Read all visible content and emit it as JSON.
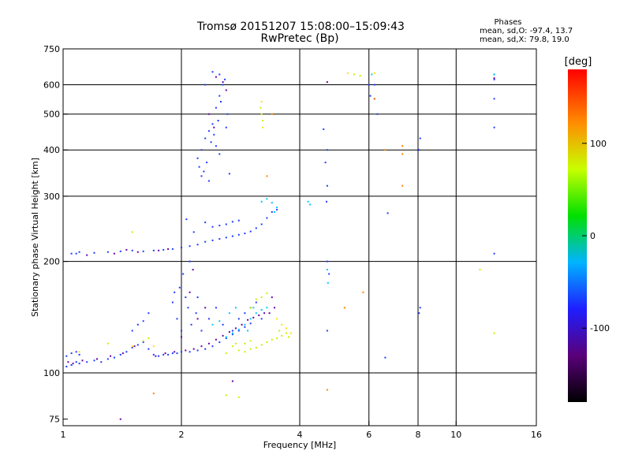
{
  "header": {
    "title": "Tromsø 20151207 15:08:00–15:09:43",
    "subtitle": "RwPretec (Bp)"
  },
  "stats": {
    "title": "Phases",
    "o_line": "mean, sd,O: -97.4, 13.7",
    "x_line": "mean, sd,X:  79.8, 19.0"
  },
  "colors": {
    "purple": "#6a00a8",
    "blue": "#1f3cff",
    "cyan": "#00c8ff",
    "yellowgreen": "#c8f000",
    "yellow": "#ffe000",
    "orange": "#ff8000"
  },
  "chart_data": {
    "type": "scatter",
    "title": "Tromsø 20151207 15:08:00–15:09:43",
    "subtitle": "RwPretec (Bp)",
    "xlabel": "Frequency [MHz]",
    "ylabel": "Stationary phase Virtual Height [km]",
    "x_scale": "log2",
    "y_scale": "log",
    "xlim": [
      1,
      16
    ],
    "ylim": [
      72,
      750
    ],
    "x_ticks": [
      1,
      2,
      4,
      6,
      8,
      10,
      16
    ],
    "y_ticks": [
      75,
      100,
      200,
      300,
      400,
      500,
      600,
      750
    ],
    "x_grid": [
      2,
      4,
      6,
      8,
      10
    ],
    "y_grid": [
      100,
      200,
      300,
      400,
      500,
      600
    ],
    "grid": true,
    "colorbar": {
      "label": "[deg]",
      "range": [
        -180,
        180
      ],
      "ticks": [
        100,
        0,
        -100
      ],
      "placement": "right"
    },
    "series": [
      {
        "color": "blue",
        "points": [
          [
            1.02,
            104
          ],
          [
            1.05,
            105
          ],
          [
            1.08,
            107
          ],
          [
            1.1,
            106
          ],
          [
            1.15,
            107
          ],
          [
            1.2,
            108
          ],
          [
            1.25,
            107
          ],
          [
            1.3,
            109
          ],
          [
            1.35,
            110
          ],
          [
            1.4,
            112
          ],
          [
            1.45,
            114
          ],
          [
            1.5,
            117
          ],
          [
            1.55,
            119
          ],
          [
            1.6,
            121
          ],
          [
            1.65,
            116
          ],
          [
            1.7,
            112
          ],
          [
            1.75,
            111
          ],
          [
            1.8,
            112
          ],
          [
            1.85,
            112
          ],
          [
            1.9,
            113
          ],
          [
            1.95,
            113
          ],
          [
            2.0,
            114
          ],
          [
            2.1,
            114
          ],
          [
            2.2,
            115
          ],
          [
            2.3,
            116
          ],
          [
            2.4,
            118
          ],
          [
            2.5,
            121
          ],
          [
            2.6,
            124
          ],
          [
            2.7,
            127
          ],
          [
            2.8,
            130
          ],
          [
            2.9,
            133
          ],
          [
            3.0,
            136
          ],
          [
            1.02,
            111
          ],
          [
            1.05,
            113
          ],
          [
            1.08,
            114
          ],
          [
            1.1,
            112
          ],
          [
            1.05,
            210
          ],
          [
            1.08,
            210
          ],
          [
            1.1,
            212
          ],
          [
            1.2,
            211
          ],
          [
            1.3,
            212
          ],
          [
            1.4,
            213
          ],
          [
            1.5,
            214
          ],
          [
            1.6,
            213
          ],
          [
            1.7,
            214
          ],
          [
            1.8,
            215
          ],
          [
            1.9,
            216
          ],
          [
            2.0,
            218
          ],
          [
            2.1,
            220
          ],
          [
            2.2,
            222
          ],
          [
            2.3,
            226
          ],
          [
            2.4,
            228
          ],
          [
            2.5,
            230
          ],
          [
            2.6,
            232
          ],
          [
            2.7,
            234
          ],
          [
            2.8,
            236
          ],
          [
            2.9,
            238
          ],
          [
            3.0,
            241
          ],
          [
            3.1,
            246
          ],
          [
            3.2,
            252
          ],
          [
            3.3,
            262
          ],
          [
            3.4,
            272
          ],
          [
            3.5,
            276
          ],
          [
            2.3,
            255
          ],
          [
            2.4,
            248
          ],
          [
            2.5,
            250
          ],
          [
            2.6,
            252
          ],
          [
            2.7,
            256
          ],
          [
            2.8,
            258
          ],
          [
            2.2,
            380
          ],
          [
            2.25,
            400
          ],
          [
            2.3,
            430
          ],
          [
            2.35,
            450
          ],
          [
            2.4,
            470
          ],
          [
            2.45,
            520
          ],
          [
            2.5,
            560
          ],
          [
            2.55,
            600
          ],
          [
            2.22,
            360
          ],
          [
            2.28,
            350
          ],
          [
            2.32,
            370
          ],
          [
            2.38,
            420
          ],
          [
            2.42,
            440
          ],
          [
            2.48,
            480
          ],
          [
            2.52,
            540
          ],
          [
            2.58,
            620
          ],
          [
            2.25,
            340
          ],
          [
            2.35,
            330
          ],
          [
            2.45,
            410
          ],
          [
            2.5,
            390
          ],
          [
            2.6,
            460
          ],
          [
            2.62,
            500
          ],
          [
            2.4,
            650
          ],
          [
            2.5,
            640
          ],
          [
            2.3,
            600
          ],
          [
            2.65,
            345
          ],
          [
            2.0,
            130
          ],
          [
            2.05,
            160
          ],
          [
            2.1,
            200
          ],
          [
            2.15,
            240
          ],
          [
            1.95,
            140
          ],
          [
            1.98,
            170
          ],
          [
            2.02,
            185
          ],
          [
            2.08,
            150
          ],
          [
            2.12,
            135
          ],
          [
            2.18,
            145
          ],
          [
            2.2,
            160
          ],
          [
            1.9,
            155
          ],
          [
            1.92,
            165
          ],
          [
            2.06,
            260
          ],
          [
            2.25,
            130
          ],
          [
            2.35,
            140
          ],
          [
            2.45,
            150
          ],
          [
            2.55,
            135
          ],
          [
            2.7,
            130
          ],
          [
            2.8,
            140
          ],
          [
            2.9,
            145
          ],
          [
            3.0,
            150
          ],
          [
            3.1,
            155
          ],
          [
            3.2,
            140
          ],
          [
            1.5,
            130
          ],
          [
            1.55,
            135
          ],
          [
            1.6,
            138
          ],
          [
            1.65,
            145
          ],
          [
            4.6,
            455
          ],
          [
            4.7,
            400
          ],
          [
            4.65,
            370
          ],
          [
            4.7,
            320
          ],
          [
            4.68,
            290
          ],
          [
            4.7,
            200
          ],
          [
            4.75,
            185
          ],
          [
            4.7,
            130
          ],
          [
            6.0,
            600
          ],
          [
            6.05,
            560
          ],
          [
            6.2,
            550
          ],
          [
            6.3,
            500
          ],
          [
            6.2,
            600
          ],
          [
            8.1,
            430
          ],
          [
            8.05,
            400
          ],
          [
            6.7,
            270
          ],
          [
            8.1,
            150
          ],
          [
            8.05,
            145
          ],
          [
            12.5,
            640
          ],
          [
            12.5,
            620
          ],
          [
            12.5,
            550
          ],
          [
            12.5,
            460
          ],
          [
            12.5,
            210
          ],
          [
            6.6,
            110
          ]
        ]
      },
      {
        "color": "purple",
        "points": [
          [
            1.03,
            107
          ],
          [
            1.06,
            106
          ],
          [
            1.12,
            108
          ],
          [
            1.22,
            109
          ],
          [
            1.32,
            111
          ],
          [
            1.42,
            113
          ],
          [
            1.52,
            118
          ],
          [
            1.72,
            111
          ],
          [
            1.82,
            113
          ],
          [
            1.92,
            114
          ],
          [
            2.05,
            115
          ],
          [
            2.15,
            116
          ],
          [
            2.25,
            118
          ],
          [
            2.35,
            120
          ],
          [
            2.45,
            123
          ],
          [
            2.55,
            126
          ],
          [
            2.65,
            129
          ],
          [
            2.75,
            132
          ],
          [
            2.85,
            135
          ],
          [
            2.95,
            139
          ],
          [
            3.05,
            141
          ],
          [
            3.15,
            143
          ],
          [
            3.25,
            145
          ],
          [
            3.35,
            145
          ],
          [
            3.45,
            150
          ],
          [
            3.4,
            160
          ],
          [
            1.15,
            208
          ],
          [
            1.35,
            210
          ],
          [
            1.45,
            215
          ],
          [
            1.55,
            212
          ],
          [
            1.75,
            214
          ],
          [
            1.85,
            216
          ],
          [
            2.45,
            630
          ],
          [
            2.55,
            610
          ],
          [
            2.35,
            500
          ],
          [
            2.42,
            460
          ],
          [
            2.6,
            580
          ],
          [
            2.1,
            165
          ],
          [
            2.14,
            190
          ],
          [
            2.0,
            125
          ],
          [
            2.2,
            140
          ],
          [
            2.3,
            150
          ],
          [
            1.4,
            75
          ],
          [
            2.7,
            95
          ],
          [
            4.7,
            610
          ],
          [
            12.5,
            625
          ]
        ]
      },
      {
        "color": "cyan",
        "points": [
          [
            2.6,
            125
          ],
          [
            2.7,
            128
          ],
          [
            2.8,
            131
          ],
          [
            2.9,
            135
          ],
          [
            3.0,
            140
          ],
          [
            3.1,
            145
          ],
          [
            3.05,
            150
          ],
          [
            2.95,
            130
          ],
          [
            3.2,
            148
          ],
          [
            3.3,
            150
          ],
          [
            3.4,
            288
          ],
          [
            3.3,
            295
          ],
          [
            3.2,
            290
          ],
          [
            3.5,
            280
          ],
          [
            3.45,
            272
          ],
          [
            4.2,
            290
          ],
          [
            4.25,
            285
          ],
          [
            4.7,
            190
          ],
          [
            4.72,
            175
          ],
          [
            6.1,
            640
          ],
          [
            2.65,
            145
          ],
          [
            2.75,
            150
          ],
          [
            2.5,
            138
          ],
          [
            2.4,
            135
          ],
          [
            12.5,
            640
          ]
        ]
      },
      {
        "color": "yellowgreen",
        "points": [
          [
            2.7,
            118
          ],
          [
            2.8,
            115
          ],
          [
            2.9,
            114
          ],
          [
            3.0,
            116
          ],
          [
            3.1,
            117
          ],
          [
            3.2,
            119
          ],
          [
            3.3,
            121
          ],
          [
            3.4,
            123
          ],
          [
            3.5,
            124
          ],
          [
            3.6,
            126
          ],
          [
            3.7,
            128
          ],
          [
            3.75,
            125
          ],
          [
            3.3,
            164
          ],
          [
            3.2,
            160
          ],
          [
            3.1,
            158
          ],
          [
            3.0,
            150
          ],
          [
            3.2,
            500
          ],
          [
            3.22,
            480
          ],
          [
            3.18,
            520
          ],
          [
            5.5,
            640
          ],
          [
            5.7,
            635
          ],
          [
            1.6,
            122
          ],
          [
            1.65,
            124
          ],
          [
            1.3,
            120
          ],
          [
            1.5,
            240
          ],
          [
            11.5,
            190
          ],
          [
            12.5,
            128
          ],
          [
            2.9,
            120
          ],
          [
            3.0,
            122
          ],
          [
            2.6,
            113
          ],
          [
            2.75,
            120
          ],
          [
            3.55,
            130
          ],
          [
            2.8,
            86
          ],
          [
            2.6,
            87
          ]
        ]
      },
      {
        "color": "yellow",
        "points": [
          [
            3.2,
            540
          ],
          [
            3.22,
            460
          ],
          [
            5.3,
            645
          ],
          [
            6.2,
            645
          ],
          [
            1.1,
            114
          ],
          [
            1.5,
            118
          ],
          [
            1.7,
            118
          ],
          [
            3.8,
            128
          ],
          [
            3.7,
            132
          ],
          [
            3.6,
            135
          ],
          [
            3.5,
            140
          ]
        ]
      },
      {
        "color": "orange",
        "points": [
          [
            6.2,
            550
          ],
          [
            7.3,
            410
          ],
          [
            7.3,
            390
          ],
          [
            7.3,
            320
          ],
          [
            6.6,
            400
          ],
          [
            4.7,
            90
          ],
          [
            1.7,
            88
          ],
          [
            5.8,
            165
          ],
          [
            5.2,
            150
          ],
          [
            3.4,
            500
          ],
          [
            3.3,
            340
          ]
        ]
      }
    ]
  }
}
